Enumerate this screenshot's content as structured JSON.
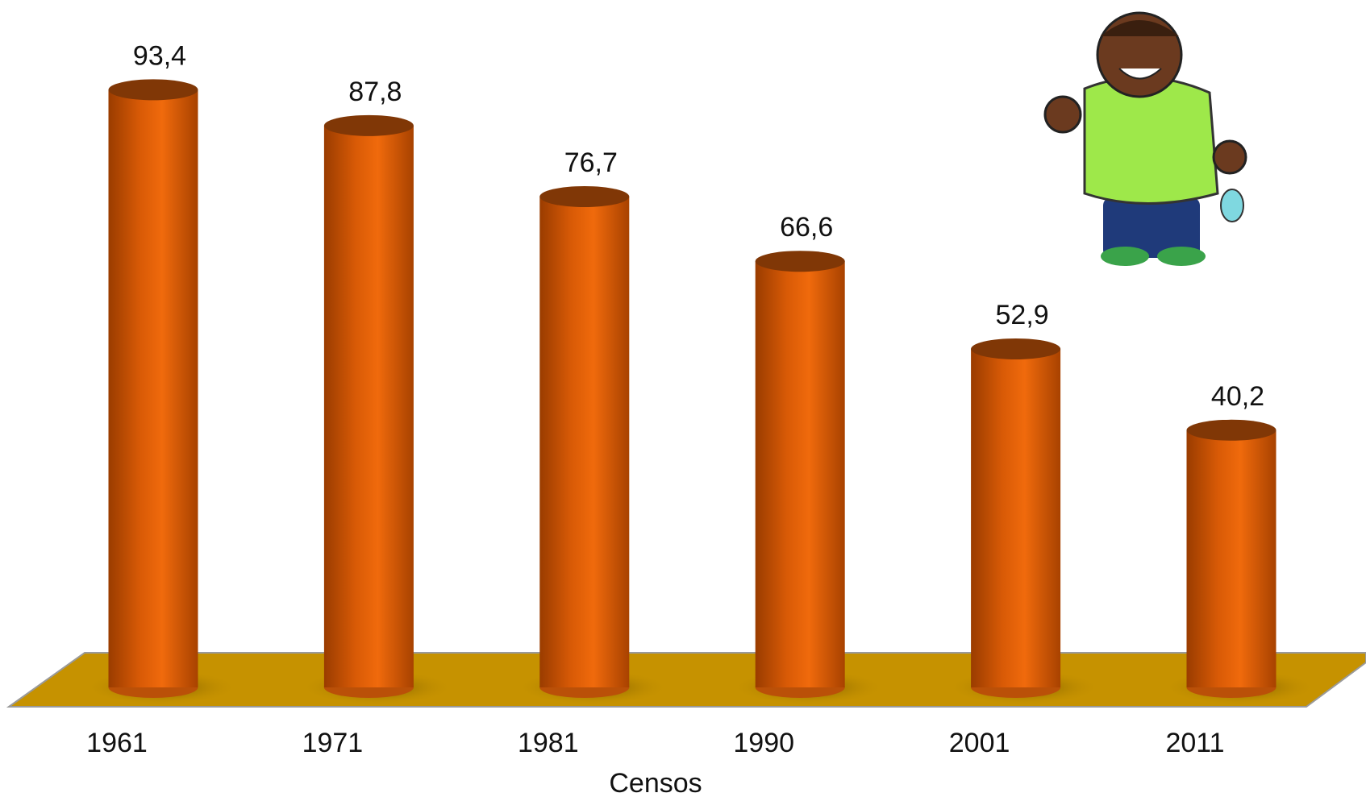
{
  "chart_data": {
    "type": "bar",
    "x_label": "Censos",
    "categories": [
      "1961",
      "1971",
      "1981",
      "1990",
      "2001",
      "2011"
    ],
    "values": [
      93.4,
      87.8,
      76.7,
      66.6,
      52.9,
      40.2
    ],
    "value_labels": [
      "93,4",
      "87,8",
      "76,7",
      "66,6",
      "52,9",
      "40,2"
    ],
    "color": "#e8640a",
    "ylim": [
      0,
      100
    ]
  }
}
